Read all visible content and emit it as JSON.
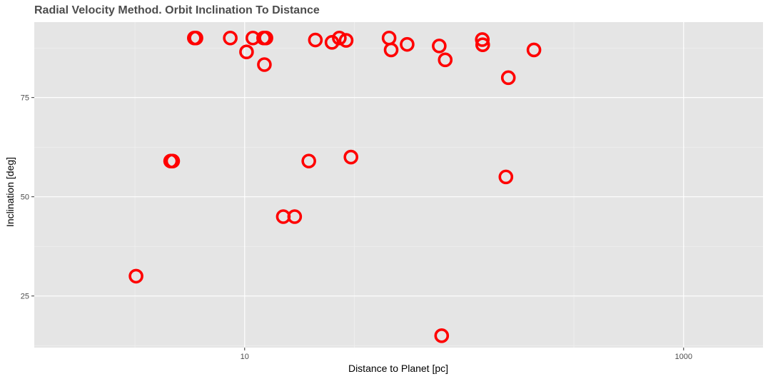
{
  "chart_data": {
    "type": "scatter",
    "title": "Radial Velocity Method. Orbit Inclination To Distance",
    "xlabel": "Distance to Planet [pc]",
    "ylabel": "Inclination [deg]",
    "x_scale": "log10",
    "xlim": [
      1.1,
      2300
    ],
    "ylim": [
      12,
      94
    ],
    "x_ticks": [
      10,
      1000
    ],
    "x_tick_labels": [
      "10",
      "1000"
    ],
    "y_ticks": [
      25,
      50,
      75
    ],
    "y_tick_labels": [
      "25",
      "50",
      "75"
    ],
    "grid": true,
    "marker": {
      "shape": "hollow-circle",
      "color": "#ff0000"
    },
    "points": [
      {
        "x": 3.2,
        "y": 30
      },
      {
        "x": 4.6,
        "y": 59
      },
      {
        "x": 4.7,
        "y": 59
      },
      {
        "x": 5.9,
        "y": 90
      },
      {
        "x": 6.0,
        "y": 90
      },
      {
        "x": 8.6,
        "y": 90
      },
      {
        "x": 10.2,
        "y": 86.5
      },
      {
        "x": 10.9,
        "y": 90
      },
      {
        "x": 12.2,
        "y": 90
      },
      {
        "x": 12.5,
        "y": 90
      },
      {
        "x": 12.3,
        "y": 83.3
      },
      {
        "x": 15.0,
        "y": 45
      },
      {
        "x": 16.9,
        "y": 45
      },
      {
        "x": 19.6,
        "y": 59
      },
      {
        "x": 21.0,
        "y": 89.5
      },
      {
        "x": 25.0,
        "y": 88.9
      },
      {
        "x": 27.0,
        "y": 90
      },
      {
        "x": 29.0,
        "y": 89.4
      },
      {
        "x": 30.5,
        "y": 60
      },
      {
        "x": 45.5,
        "y": 90
      },
      {
        "x": 46.5,
        "y": 87
      },
      {
        "x": 55.0,
        "y": 88.4
      },
      {
        "x": 77.0,
        "y": 88
      },
      {
        "x": 79.0,
        "y": 15
      },
      {
        "x": 82.0,
        "y": 84.5
      },
      {
        "x": 121.0,
        "y": 89.6
      },
      {
        "x": 121.5,
        "y": 88.3
      },
      {
        "x": 155.0,
        "y": 55
      },
      {
        "x": 159.0,
        "y": 80
      },
      {
        "x": 208.0,
        "y": 87
      }
    ]
  }
}
